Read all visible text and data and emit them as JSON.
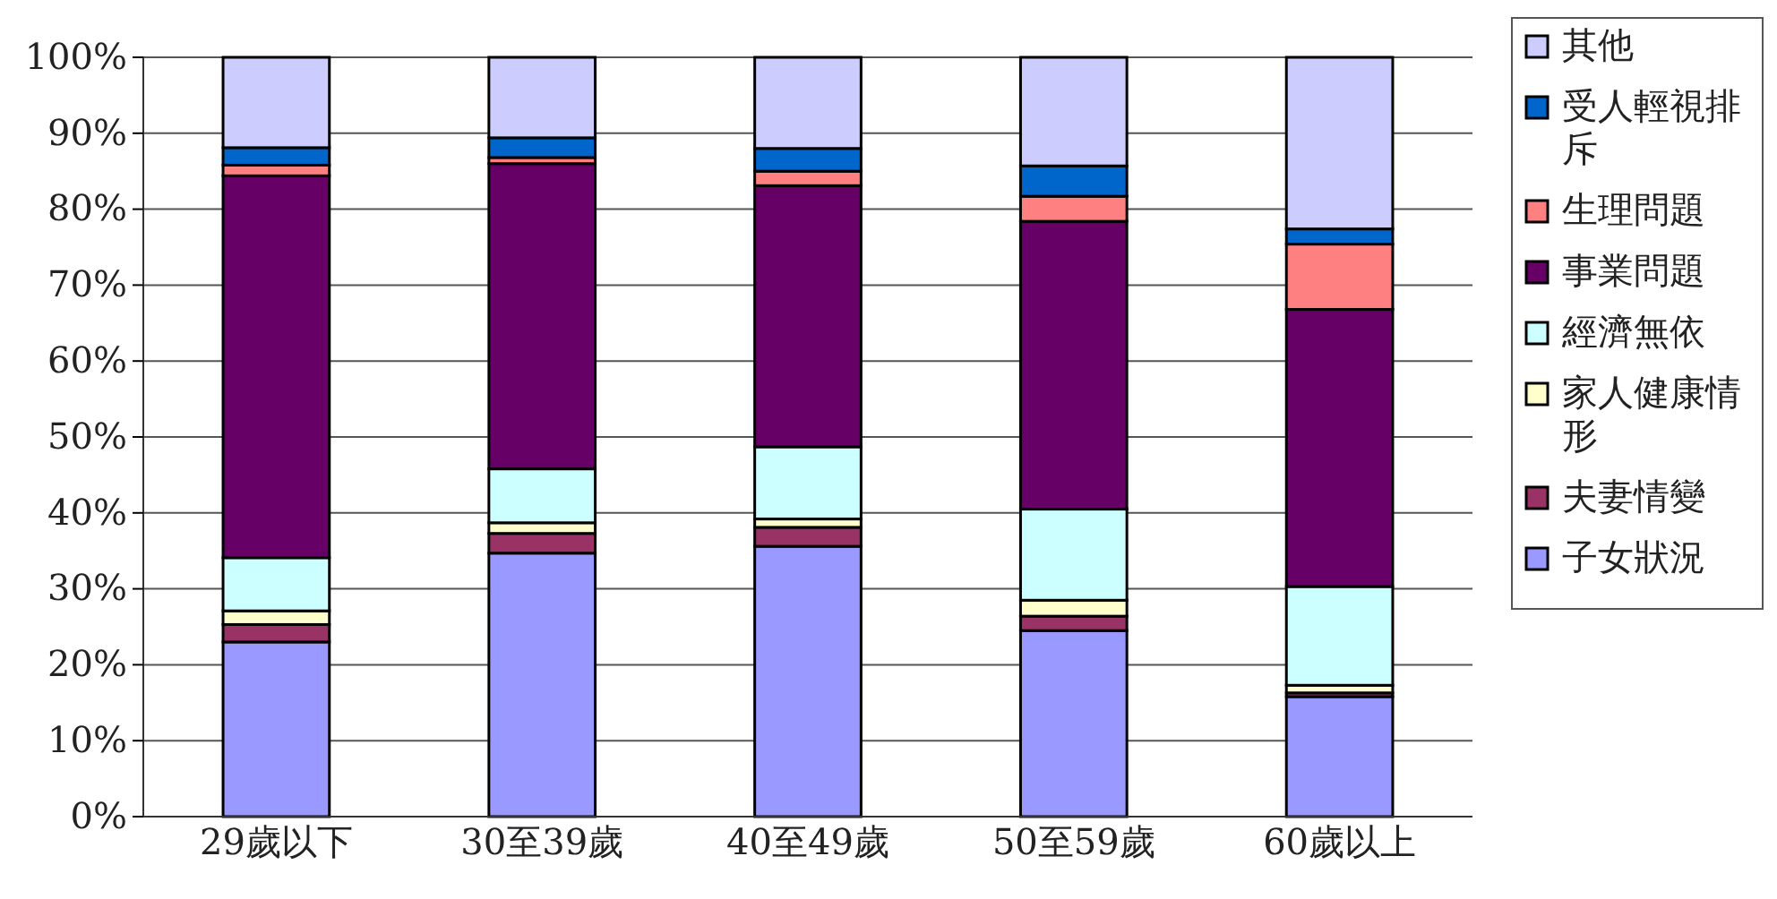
{
  "chart_data": {
    "type": "bar",
    "stacked": true,
    "categories": [
      "29歲以下",
      "30至39歲",
      "40至49歲",
      "50至59歲",
      "60歲以上"
    ],
    "series": [
      {
        "name": "子女狀況",
        "color": "#9999ff",
        "values": [
          23,
          34.7,
          35.6,
          24.5,
          15.8
        ]
      },
      {
        "name": "夫妻情變",
        "color": "#993366",
        "values": [
          2.3,
          2.6,
          2.5,
          1.9,
          0.5
        ]
      },
      {
        "name": "家人健康情形",
        "color": "#ffffcc",
        "values": [
          1.8,
          1.4,
          1.1,
          2.1,
          1
        ]
      },
      {
        "name": "經濟無依",
        "color": "#ccffff",
        "values": [
          7,
          7.1,
          9.5,
          12,
          13
        ]
      },
      {
        "name": "事業問題",
        "color": "#660066",
        "values": [
          50.3,
          40.2,
          34.4,
          37.9,
          36.5
        ]
      },
      {
        "name": "生理問題",
        "color": "#ff8080",
        "values": [
          1.4,
          0.8,
          1.9,
          3.3,
          8.6
        ]
      },
      {
        "name": "受人輕視排斥",
        "color": "#0066cc",
        "values": [
          2.3,
          2.6,
          3,
          4,
          2
        ]
      },
      {
        "name": "其他",
        "color": "#ccccff",
        "values": [
          11.9,
          10.6,
          12,
          14.3,
          22.6
        ]
      }
    ],
    "ylim": [
      0,
      100
    ],
    "yticks": [
      {
        "value": 0,
        "label": "0%"
      },
      {
        "value": 10,
        "label": "10%"
      },
      {
        "value": 20,
        "label": "20%"
      },
      {
        "value": 30,
        "label": "30%"
      },
      {
        "value": 40,
        "label": "40%"
      },
      {
        "value": 50,
        "label": "50%"
      },
      {
        "value": 60,
        "label": "60%"
      },
      {
        "value": 70,
        "label": "70%"
      },
      {
        "value": 80,
        "label": "80%"
      },
      {
        "value": 90,
        "label": "90%"
      },
      {
        "value": 100,
        "label": "100%"
      }
    ],
    "grid": "y",
    "legend": "right"
  }
}
